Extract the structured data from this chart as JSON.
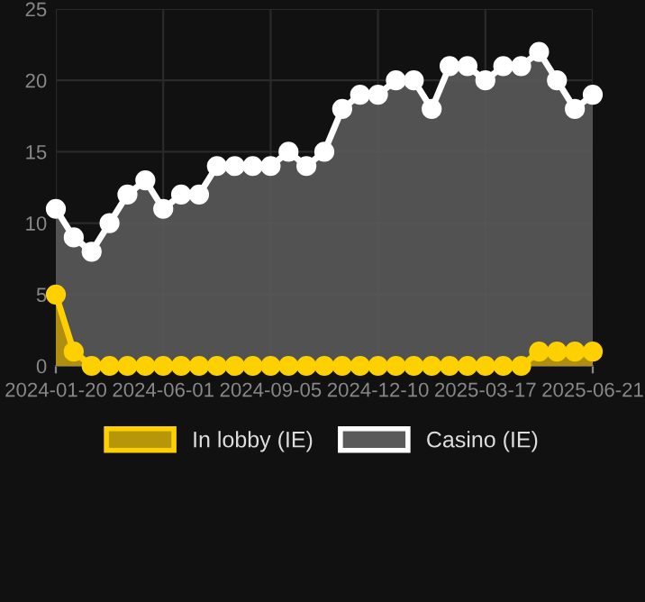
{
  "chart_data": {
    "type": "area",
    "categories": [
      "2024-01-20",
      null,
      null,
      null,
      null,
      null,
      "2024-06-01",
      null,
      null,
      null,
      null,
      null,
      "2024-09-05",
      null,
      null,
      null,
      null,
      null,
      "2024-12-10",
      null,
      null,
      null,
      null,
      null,
      "2025-03-17",
      null,
      null,
      null,
      null,
      null,
      "2025-06-21"
    ],
    "series": [
      {
        "name": "In lobby (IE)",
        "color": "#ffd000",
        "values": [
          5,
          1,
          0,
          0,
          0,
          0,
          0,
          0,
          0,
          0,
          0,
          0,
          0,
          0,
          0,
          0,
          0,
          0,
          0,
          0,
          0,
          0,
          0,
          0,
          0,
          0,
          0,
          1,
          1,
          1,
          1
        ]
      },
      {
        "name": "Casino (IE)",
        "color": "#ffffff",
        "values": [
          11,
          9,
          8,
          10,
          12,
          13,
          11,
          12,
          12,
          14,
          14,
          14,
          14,
          15,
          14,
          15,
          18,
          19,
          19,
          20,
          20,
          18,
          21,
          21,
          20,
          21,
          21,
          22,
          20,
          18,
          19
        ]
      }
    ],
    "ylim": [
      0,
      25
    ],
    "yticks": [
      0,
      5,
      10,
      15,
      20,
      25
    ],
    "grid": true,
    "legend": "bottom",
    "marker": "circle"
  }
}
